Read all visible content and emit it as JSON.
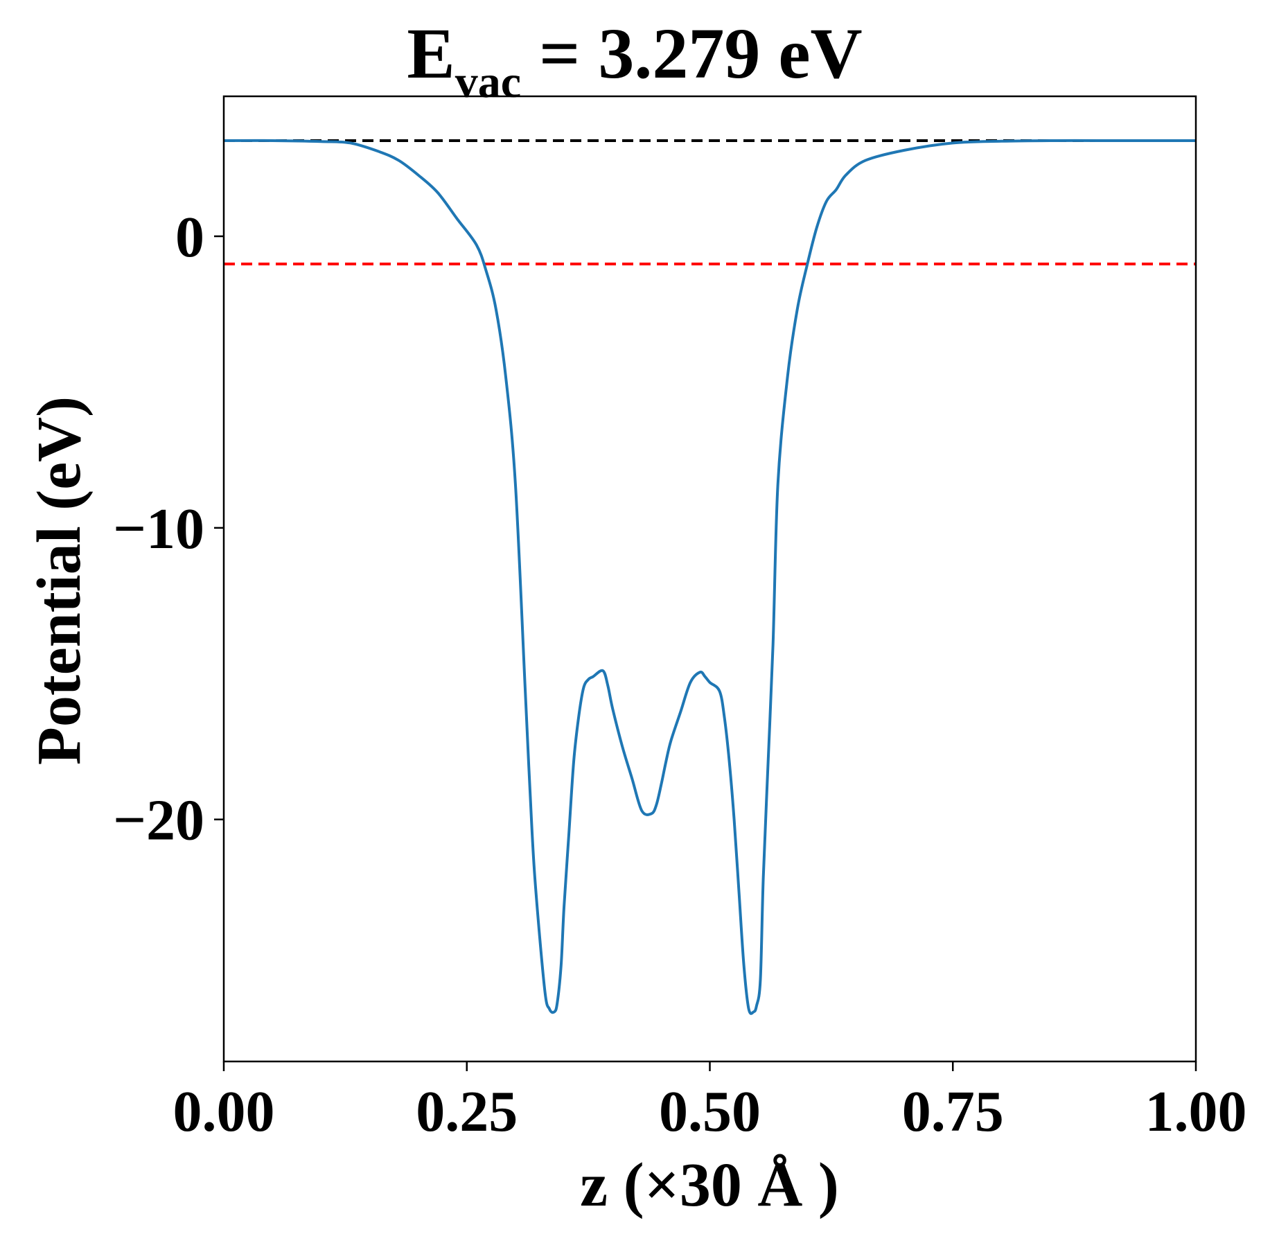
{
  "chart_data": {
    "type": "line",
    "title": {
      "main": "E",
      "sub": "vac",
      "rest": " = 3.279 eV"
    },
    "xlabel": "z (×30 Å )",
    "ylabel": "Potential (eV)",
    "xlim": [
      0.0,
      1.0
    ],
    "ylim": [
      -28.3,
      4.8
    ],
    "xticks": [
      {
        "value": 0.0,
        "label": "0.00"
      },
      {
        "value": 0.25,
        "label": "0.25"
      },
      {
        "value": 0.5,
        "label": "0.50"
      },
      {
        "value": 0.75,
        "label": "0.75"
      },
      {
        "value": 1.0,
        "label": "1.00"
      }
    ],
    "yticks": [
      {
        "value": 0,
        "label": "0"
      },
      {
        "value": -10,
        "label": "−10"
      },
      {
        "value": -20,
        "label": "−20"
      }
    ],
    "grid": false,
    "reference_lines": [
      {
        "y": 3.279,
        "color": "#000000",
        "style": "dashed"
      },
      {
        "y": -0.95,
        "color": "#ff0000",
        "style": "dashed"
      }
    ],
    "series": [
      {
        "color": "#1f77b4",
        "x": [
          0.0,
          0.05,
          0.1,
          0.13,
          0.16,
          0.18,
          0.2,
          0.22,
          0.24,
          0.26,
          0.27,
          0.28,
          0.29,
          0.3,
          0.31,
          0.315,
          0.32,
          0.33,
          0.335,
          0.34,
          0.343,
          0.347,
          0.35,
          0.355,
          0.36,
          0.365,
          0.37,
          0.375,
          0.38,
          0.39,
          0.395,
          0.4,
          0.41,
          0.42,
          0.43,
          0.44,
          0.445,
          0.45,
          0.455,
          0.46,
          0.47,
          0.48,
          0.49,
          0.495,
          0.5,
          0.51,
          0.515,
          0.52,
          0.525,
          0.53,
          0.535,
          0.54,
          0.545,
          0.548,
          0.552,
          0.555,
          0.56,
          0.565,
          0.57,
          0.58,
          0.59,
          0.6,
          0.61,
          0.62,
          0.63,
          0.64,
          0.66,
          0.7,
          0.75,
          0.8,
          0.85,
          0.9,
          0.95,
          1.0
        ],
        "y": [
          3.28,
          3.28,
          3.25,
          3.2,
          2.9,
          2.6,
          2.1,
          1.5,
          0.6,
          -0.3,
          -1.2,
          -2.5,
          -4.8,
          -8.5,
          -15.5,
          -19.0,
          -22.0,
          -25.8,
          -26.5,
          -26.6,
          -26.3,
          -25.0,
          -23.0,
          -20.5,
          -18.0,
          -16.5,
          -15.5,
          -15.2,
          -15.1,
          -14.9,
          -15.4,
          -16.2,
          -17.5,
          -18.6,
          -19.7,
          -19.8,
          -19.5,
          -18.8,
          -18.0,
          -17.3,
          -16.3,
          -15.3,
          -14.95,
          -15.1,
          -15.3,
          -15.6,
          -16.5,
          -18.0,
          -20.0,
          -22.5,
          -25.0,
          -26.5,
          -26.6,
          -26.4,
          -25.5,
          -22.0,
          -18.0,
          -14.0,
          -8.5,
          -4.8,
          -2.5,
          -1.0,
          0.3,
          1.2,
          1.6,
          2.1,
          2.6,
          2.95,
          3.2,
          3.26,
          3.28,
          3.28,
          3.28,
          3.28
        ]
      }
    ]
  }
}
